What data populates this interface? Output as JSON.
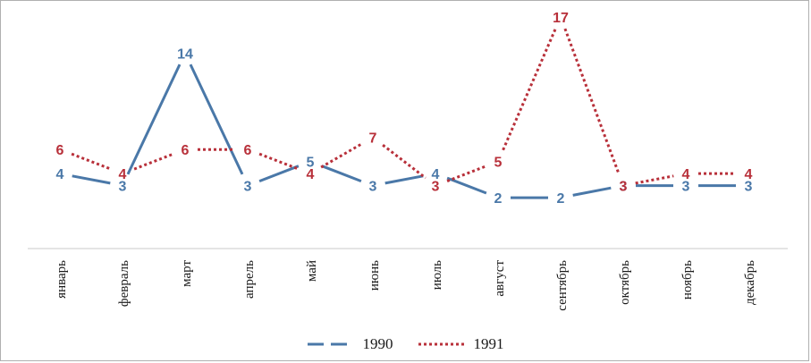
{
  "chart_data": {
    "type": "line",
    "title": "",
    "xlabel": "",
    "ylabel": "",
    "ylim": [
      0,
      17
    ],
    "grid": false,
    "legend_position": "bottom",
    "categories": [
      "январь",
      "февраль",
      "март",
      "апрель",
      "май",
      "июнь",
      "июль",
      "август",
      "сентябрь",
      "октябрь",
      "ноябрь",
      "декабрь"
    ],
    "series": [
      {
        "name": "1990",
        "values": [
          4,
          3,
          14,
          3,
          5,
          3,
          4,
          2,
          2,
          3,
          3,
          3
        ],
        "color": "#4a78a8",
        "line_style": "dashed"
      },
      {
        "name": "1991",
        "values": [
          6,
          4,
          6,
          6,
          4,
          7,
          3,
          5,
          17,
          3,
          4,
          4
        ],
        "color": "#b8303a",
        "line_style": "dotted"
      }
    ]
  }
}
